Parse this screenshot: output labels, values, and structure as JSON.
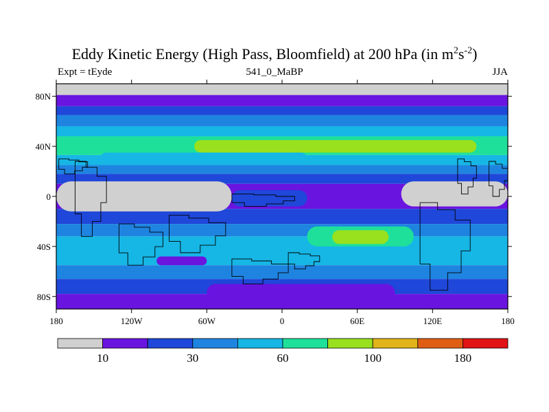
{
  "chart_data": {
    "type": "heatmap",
    "title_main": "Eddy Kinetic Energy (High Pass, Bloomfield) at 200 hPa (in m",
    "title_unit_a": "2",
    "title_mid": "s",
    "title_unit_b": "-2",
    "title_end": ")",
    "subtitle_left": "Expt = tEyde",
    "subtitle_center": "541_0_MaBP",
    "subtitle_right": "JJA",
    "x_ticks": [
      {
        "value": -180,
        "label": "180"
      },
      {
        "value": -120,
        "label": "120W"
      },
      {
        "value": -60,
        "label": "60W"
      },
      {
        "value": 0,
        "label": "0"
      },
      {
        "value": 60,
        "label": "60E"
      },
      {
        "value": 120,
        "label": "120E"
      },
      {
        "value": 180,
        "label": "180"
      }
    ],
    "y_ticks": [
      {
        "value": 80,
        "label": "80N"
      },
      {
        "value": 40,
        "label": "40N"
      },
      {
        "value": 0,
        "label": "0"
      },
      {
        "value": -40,
        "label": "40S"
      },
      {
        "value": -80,
        "label": "80S"
      }
    ],
    "xlim": [
      -180,
      180
    ],
    "ylim": [
      -90,
      90
    ],
    "colorbar": {
      "colors": [
        "#d0d0d0",
        "#6a14e0",
        "#1f47d9",
        "#1f84e0",
        "#16b6e5",
        "#1ee09b",
        "#99e01f",
        "#e0b41a",
        "#e05e14",
        "#e01414"
      ],
      "labels": [
        {
          "boundary": 1,
          "text": "10"
        },
        {
          "boundary": 3,
          "text": "30"
        },
        {
          "boundary": 5,
          "text": "60"
        },
        {
          "boundary": 7,
          "text": "100"
        },
        {
          "boundary": 9,
          "text": "180"
        }
      ]
    },
    "zonal_bands": [
      {
        "lat_top": 90,
        "lat_bottom": 81,
        "level": 0
      },
      {
        "lat_top": 81,
        "lat_bottom": 72,
        "level": 1
      },
      {
        "lat_top": 72,
        "lat_bottom": 65,
        "level": 2
      },
      {
        "lat_top": 65,
        "lat_bottom": 56,
        "level": 3
      },
      {
        "lat_top": 56,
        "lat_bottom": 48,
        "level": 4
      },
      {
        "lat_top": 48,
        "lat_bottom": 33,
        "level": 5
      },
      {
        "lat_top": 33,
        "lat_bottom": 25,
        "level": 4
      },
      {
        "lat_top": 25,
        "lat_bottom": 18,
        "level": 3
      },
      {
        "lat_top": 18,
        "lat_bottom": 10,
        "level": 2
      },
      {
        "lat_top": 10,
        "lat_bottom": -10,
        "level": 1
      },
      {
        "lat_top": -10,
        "lat_bottom": -22,
        "level": 2
      },
      {
        "lat_top": -22,
        "lat_bottom": -32,
        "level": 3
      },
      {
        "lat_top": -32,
        "lat_bottom": -55,
        "level": 4
      },
      {
        "lat_top": -55,
        "lat_bottom": -66,
        "level": 3
      },
      {
        "lat_top": -66,
        "lat_bottom": -78,
        "level": 2
      },
      {
        "lat_top": -78,
        "lat_bottom": -90,
        "level": 1
      }
    ],
    "patches": [
      {
        "lon_min": -70,
        "lon_max": 155,
        "lat_min": 35,
        "lat_max": 45,
        "level": 6
      },
      {
        "lon_min": 20,
        "lon_max": 105,
        "lat_min": -40,
        "lat_max": -24,
        "level": 5
      },
      {
        "lon_min": 40,
        "lon_max": 85,
        "lat_min": -38,
        "lat_max": -27,
        "level": 6
      },
      {
        "lon_min": -145,
        "lon_max": 20,
        "lat_min": 25,
        "lat_max": 35,
        "level": 4
      },
      {
        "lon_min": -180,
        "lon_max": -40,
        "lat_min": -12,
        "lat_max": 12,
        "level": 0
      },
      {
        "lon_min": 95,
        "lon_max": 180,
        "lat_min": -8,
        "lat_max": 12,
        "level": 0
      },
      {
        "lon_min": -40,
        "lon_max": 20,
        "lat_min": -8,
        "lat_max": 5,
        "level": 2
      },
      {
        "lon_min": -100,
        "lon_max": -60,
        "lat_min": -55,
        "lat_max": -48,
        "level": 1
      },
      {
        "lon_min": -60,
        "lon_max": 90,
        "lat_min": -84,
        "lat_max": -70,
        "level": 1
      }
    ],
    "coastlines": [
      {
        "lon_min": -178,
        "lon_max": -155,
        "lat_min": 18,
        "lat_max": 30
      },
      {
        "lon_min": -165,
        "lon_max": -140,
        "lat_min": -32,
        "lat_max": 28
      },
      {
        "lon_min": -130,
        "lon_max": -95,
        "lat_min": -55,
        "lat_max": -22
      },
      {
        "lon_min": -90,
        "lon_max": -45,
        "lat_min": -45,
        "lat_max": -15
      },
      {
        "lon_min": -40,
        "lon_max": 10,
        "lat_min": -8,
        "lat_max": 2
      },
      {
        "lon_min": -40,
        "lon_max": 5,
        "lat_min": -70,
        "lat_max": -50
      },
      {
        "lon_min": 5,
        "lon_max": 30,
        "lat_min": -58,
        "lat_max": -45
      },
      {
        "lon_min": 110,
        "lon_max": 150,
        "lat_min": -75,
        "lat_max": -5
      },
      {
        "lon_min": 140,
        "lon_max": 155,
        "lat_min": 2,
        "lat_max": 30
      },
      {
        "lon_min": 165,
        "lon_max": 180,
        "lat_min": 0,
        "lat_max": 28
      }
    ]
  }
}
